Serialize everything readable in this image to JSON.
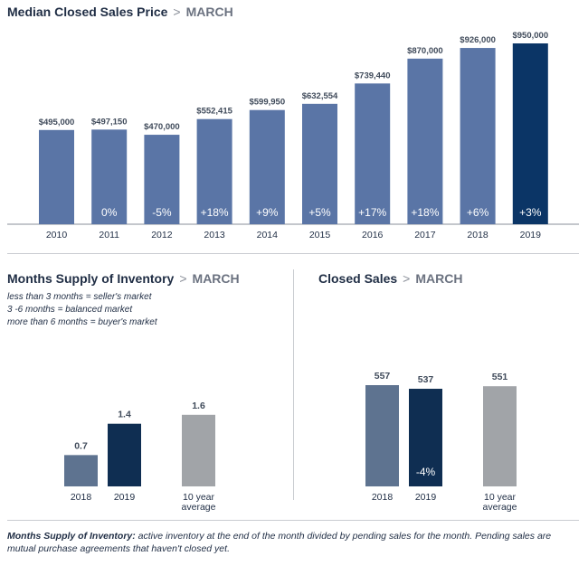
{
  "sections": {
    "price": {
      "title": "Median Closed Sales Price",
      "separator": ">",
      "subtitle": "MARCH"
    },
    "supply": {
      "title": "Months Supply of Inventory",
      "separator": ">",
      "subtitle": "MARCH",
      "legend": [
        "less than 3 months = seller's market",
        "3 -6 months = balanced market",
        "more than 6 months = buyer's market"
      ]
    },
    "sales": {
      "title": "Closed Sales",
      "separator": ">",
      "subtitle": "MARCH"
    }
  },
  "footnote": {
    "term": "Months Supply of Inventory:",
    "text": " active inventory at the end of the month divided by pending sales for the month. Pending sales are mutual purchase agreements that haven't closed yet."
  },
  "colors": {
    "bar": "#5a75a6",
    "highlight": "#0b3566",
    "prior": "#5e7390",
    "current": "#0f2e52",
    "average": "#a1a4a8",
    "axis": "#8a8f99"
  },
  "chart_data": [
    {
      "type": "bar",
      "categories": [
        "2010",
        "2011",
        "2012",
        "2013",
        "2014",
        "2015",
        "2016",
        "2017",
        "2018",
        "2019"
      ],
      "values": [
        495000,
        497150,
        470000,
        552415,
        599950,
        632554,
        739440,
        870000,
        926000,
        950000
      ],
      "value_labels": [
        "$495,000",
        "$497,150",
        "$470,000",
        "$552,415",
        "$599,950",
        "$632,554",
        "$739,440",
        "$870,000",
        "$926,000",
        "$950,000"
      ],
      "change_labels": [
        "",
        "0%",
        "-5%",
        "+18%",
        "+9%",
        "+5%",
        "+17%",
        "+18%",
        "+6%",
        "+3%"
      ],
      "highlight_index": 9
    },
    {
      "type": "bar",
      "categories": [
        "2018",
        "2019",
        "10 year average"
      ],
      "category_lines": [
        [
          "2018"
        ],
        [
          "2019"
        ],
        [
          "10 year",
          "average"
        ]
      ],
      "values": [
        0.7,
        1.4,
        1.6
      ],
      "value_labels": [
        "0.7",
        "1.4",
        "1.6"
      ],
      "change_labels": [
        "",
        "",
        ""
      ]
    },
    {
      "type": "bar",
      "categories": [
        "2018",
        "2019",
        "10 year average"
      ],
      "category_lines": [
        [
          "2018"
        ],
        [
          "2019"
        ],
        [
          "10 year",
          "average"
        ]
      ],
      "values": [
        557,
        537,
        551
      ],
      "value_labels": [
        "557",
        "537",
        "551"
      ],
      "change_labels": [
        "",
        "-4%",
        ""
      ]
    }
  ]
}
